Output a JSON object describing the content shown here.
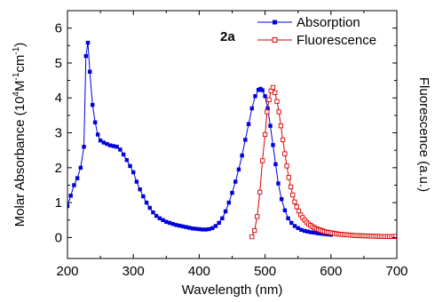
{
  "chart_data": {
    "type": "line",
    "annotation": "2a",
    "xlabel": "Wavelength (nm)",
    "ylabel_parts": [
      "Molar Absorbance (10",
      "4",
      "M",
      "-1",
      "cm",
      "-1",
      ")"
    ],
    "y2label": "Fluorescence (a.u.)",
    "xlim": [
      200,
      700
    ],
    "ylim": [
      -0.6,
      6.5
    ],
    "x_ticks": [
      200,
      300,
      400,
      500,
      600,
      700
    ],
    "y_ticks": [
      0,
      1,
      2,
      3,
      4,
      5,
      6
    ],
    "legend_position": "top-right",
    "series": [
      {
        "name": "Absorption",
        "color": "#0000dd",
        "marker": "filled-square",
        "x": [
          200,
          205,
          210,
          215,
          220,
          225,
          228,
          231,
          234,
          238,
          242,
          246,
          250,
          255,
          260,
          265,
          270,
          275,
          280,
          285,
          290,
          295,
          300,
          305,
          310,
          315,
          320,
          325,
          330,
          335,
          340,
          345,
          350,
          355,
          360,
          365,
          370,
          375,
          380,
          385,
          390,
          395,
          400,
          405,
          410,
          415,
          420,
          425,
          430,
          435,
          440,
          445,
          450,
          455,
          460,
          465,
          470,
          475,
          480,
          485,
          490,
          493,
          496,
          500,
          504,
          508,
          512,
          516,
          520,
          525,
          530,
          535,
          540,
          545,
          550,
          555,
          560,
          565,
          570,
          575,
          580,
          585,
          590,
          595,
          600
        ],
        "y": [
          0.9,
          1.2,
          1.5,
          1.7,
          2.0,
          2.6,
          5.2,
          5.58,
          4.75,
          3.8,
          3.3,
          2.95,
          2.78,
          2.72,
          2.68,
          2.64,
          2.62,
          2.6,
          2.52,
          2.38,
          2.22,
          2.05,
          1.87,
          1.6,
          1.38,
          1.18,
          1.0,
          0.85,
          0.72,
          0.62,
          0.55,
          0.5,
          0.45,
          0.42,
          0.39,
          0.36,
          0.34,
          0.32,
          0.3,
          0.28,
          0.26,
          0.25,
          0.24,
          0.23,
          0.23,
          0.24,
          0.27,
          0.33,
          0.42,
          0.55,
          0.75,
          1.0,
          1.28,
          1.6,
          1.95,
          2.35,
          2.8,
          3.25,
          3.7,
          4.05,
          4.23,
          4.26,
          4.22,
          4.05,
          3.7,
          3.2,
          2.65,
          2.1,
          1.55,
          1.1,
          0.78,
          0.55,
          0.42,
          0.33,
          0.27,
          0.22,
          0.19,
          0.17,
          0.15,
          0.14,
          0.12,
          0.11,
          0.1,
          0.09,
          0.08
        ]
      },
      {
        "name": "Fluorescence",
        "color": "#dd0000",
        "marker": "open-square",
        "x": [
          480,
          484,
          488,
          492,
          496,
          500,
          503,
          506,
          509,
          512,
          515,
          518,
          521,
          524,
          527,
          530,
          533,
          536,
          539,
          542,
          545,
          548,
          551,
          554,
          557,
          560,
          563,
          566,
          569,
          572,
          575,
          578,
          581,
          584,
          587,
          590,
          593,
          596,
          599,
          602,
          605,
          608,
          611,
          614,
          617,
          620,
          623,
          626,
          629,
          632,
          635,
          638,
          641,
          644,
          647,
          650,
          653,
          656,
          659,
          662,
          665,
          668,
          671,
          674,
          677,
          680,
          683,
          686,
          689,
          692,
          695,
          698
        ],
        "y": [
          0.02,
          0.2,
          0.6,
          1.3,
          2.2,
          2.95,
          3.6,
          3.95,
          4.2,
          4.3,
          4.15,
          3.9,
          3.6,
          3.2,
          2.8,
          2.4,
          2.05,
          1.72,
          1.45,
          1.22,
          1.02,
          0.88,
          0.76,
          0.65,
          0.57,
          0.5,
          0.44,
          0.39,
          0.35,
          0.31,
          0.28,
          0.25,
          0.23,
          0.21,
          0.19,
          0.17,
          0.16,
          0.15,
          0.14,
          0.13,
          0.12,
          0.11,
          0.1,
          0.095,
          0.09,
          0.085,
          0.08,
          0.075,
          0.07,
          0.065,
          0.06,
          0.058,
          0.055,
          0.052,
          0.05,
          0.048,
          0.046,
          0.044,
          0.042,
          0.04,
          0.038,
          0.036,
          0.035,
          0.034,
          0.033,
          0.032,
          0.031,
          0.03,
          0.03,
          0.03,
          0.03,
          0.03
        ]
      }
    ]
  }
}
